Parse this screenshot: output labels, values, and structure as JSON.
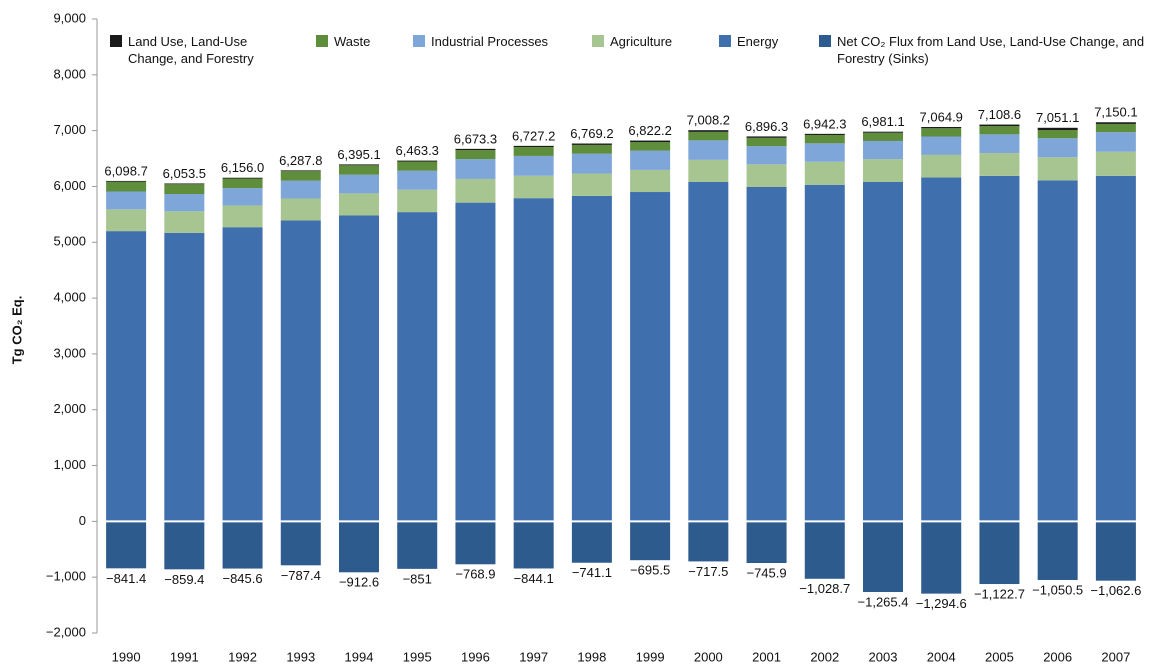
{
  "chart_data": {
    "type": "stacked_bar",
    "ylabel": "Tg CO₂ Eq.",
    "categories": [
      "1990",
      "1991",
      "1992",
      "1993",
      "1994",
      "1995",
      "1996",
      "1997",
      "1998",
      "1999",
      "2000",
      "2001",
      "2002",
      "2003",
      "2004",
      "2005",
      "2006",
      "2007"
    ],
    "series": [
      {
        "name": "Land Use, Land-Use Change, and Forestry",
        "color": "#1a1a1a",
        "values": [
          14,
          14,
          14,
          14,
          16,
          16,
          22,
          20,
          25,
          26,
          30,
          25,
          20,
          18,
          22,
          27,
          40,
          30
        ]
      },
      {
        "name": "Waste",
        "color": "#5e8d3c",
        "values": [
          175,
          175,
          172,
          170,
          168,
          165,
          162,
          160,
          157,
          155,
          152,
          150,
          150,
          148,
          148,
          148,
          148,
          148
        ]
      },
      {
        "name": "Industrial Processes",
        "color": "#7fa6d8",
        "values": [
          320,
          310,
          310,
          320,
          335,
          340,
          355,
          355,
          355,
          345,
          350,
          325,
          330,
          325,
          330,
          335,
          340,
          350
        ]
      },
      {
        "name": "Agriculture",
        "color": "#a7c591",
        "values": [
          390,
          385,
          390,
          394,
          396,
          402,
          424,
          402,
          402,
          396,
          396,
          406,
          412,
          410,
          405,
          409,
          413,
          432
        ]
      },
      {
        "name": "Energy",
        "color": "#3f6fad",
        "values": [
          5199.7,
          5169.5,
          5270.0,
          5389.8,
          5480.1,
          5540.3,
          5710.3,
          5790.2,
          5830.2,
          5900.2,
          6080.2,
          5990.3,
          6030.3,
          6080.1,
          6159.9,
          6189.6,
          6110.1,
          6190.1
        ]
      },
      {
        "name": "Net CO₂ Flux from Land Use, Land-Use Change, and Forestry (Sinks)",
        "color": "#2e5b8e",
        "values": [
          -841.4,
          -859.4,
          -845.6,
          -787.4,
          -912.6,
          -851,
          -768.9,
          -844.1,
          -741.1,
          -695.5,
          -717.5,
          -745.9,
          -1028.7,
          -1265.4,
          -1294.6,
          -1122.7,
          -1050.5,
          -1062.6
        ],
        "value_labels": [
          "−841.4",
          "−859.4",
          "−845.6",
          "−787.4",
          "−912.6",
          "−851",
          "−768.9",
          "−844.1",
          "−741.1",
          "−695.5",
          "−717.5",
          "−745.9",
          "−1,028.7",
          "−1,265.4",
          "−1,294.6",
          "−1,122.7",
          "−1,050.5",
          "−1,062.6"
        ]
      }
    ],
    "totals": [
      6098.7,
      6053.5,
      6156.0,
      6287.8,
      6395.1,
      6463.3,
      6673.3,
      6727.2,
      6769.2,
      6822.2,
      7008.2,
      6896.3,
      6942.3,
      6981.1,
      7064.9,
      7108.6,
      7051.1,
      7150.1
    ],
    "total_labels": [
      "6,098.7",
      "6,053.5",
      "6,156.0",
      "6,287.8",
      "6,395.1",
      "6,463.3",
      "6,673.3",
      "6,727.2",
      "6,769.2",
      "6,822.2",
      "7,008.2",
      "6,896.3",
      "6,942.3",
      "6,981.1",
      "7,064.9",
      "7,108.6",
      "7,051.1",
      "7,150.1"
    ],
    "ylim": [
      -2000,
      9000
    ],
    "yticks": [
      {
        "value": -2000,
        "label": "−2,000"
      },
      {
        "value": -1000,
        "label": "−1,000"
      },
      0,
      {
        "value": 1000,
        "label": "1,000"
      },
      {
        "value": 2000,
        "label": "2,000"
      },
      {
        "value": 3000,
        "label": "3,000"
      },
      {
        "value": 4000,
        "label": "4,000"
      },
      {
        "value": 5000,
        "label": "5,000"
      },
      {
        "value": 6000,
        "label": "6,000"
      },
      {
        "value": 7000,
        "label": "7,000"
      },
      {
        "value": 8000,
        "label": "8,000"
      },
      {
        "value": 9000,
        "label": "9,000"
      }
    ],
    "grid": false
  }
}
